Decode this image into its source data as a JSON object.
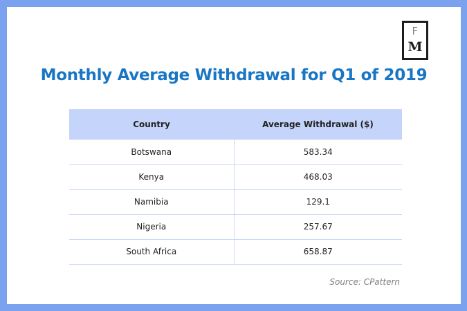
{
  "logo": {
    "top_letter": "F",
    "bottom_letter": "M"
  },
  "chart_data": {
    "type": "table",
    "title": "Monthly Average Withdrawal for Q1 of 2019",
    "columns": [
      "Country",
      "Average Withdrawal ($)"
    ],
    "rows": [
      [
        "Botswana",
        "583.34"
      ],
      [
        "Kenya",
        "468.03"
      ],
      [
        "Namibia",
        "129.1"
      ],
      [
        "Nigeria",
        "257.67"
      ],
      [
        "South Africa",
        "658.87"
      ]
    ],
    "source": "Source: CPattern"
  },
  "colors": {
    "frame": "#7aa2ef",
    "title": "#1976c4",
    "header_fill": "#c4d4fb",
    "grid_line": "#cbd7f7"
  }
}
